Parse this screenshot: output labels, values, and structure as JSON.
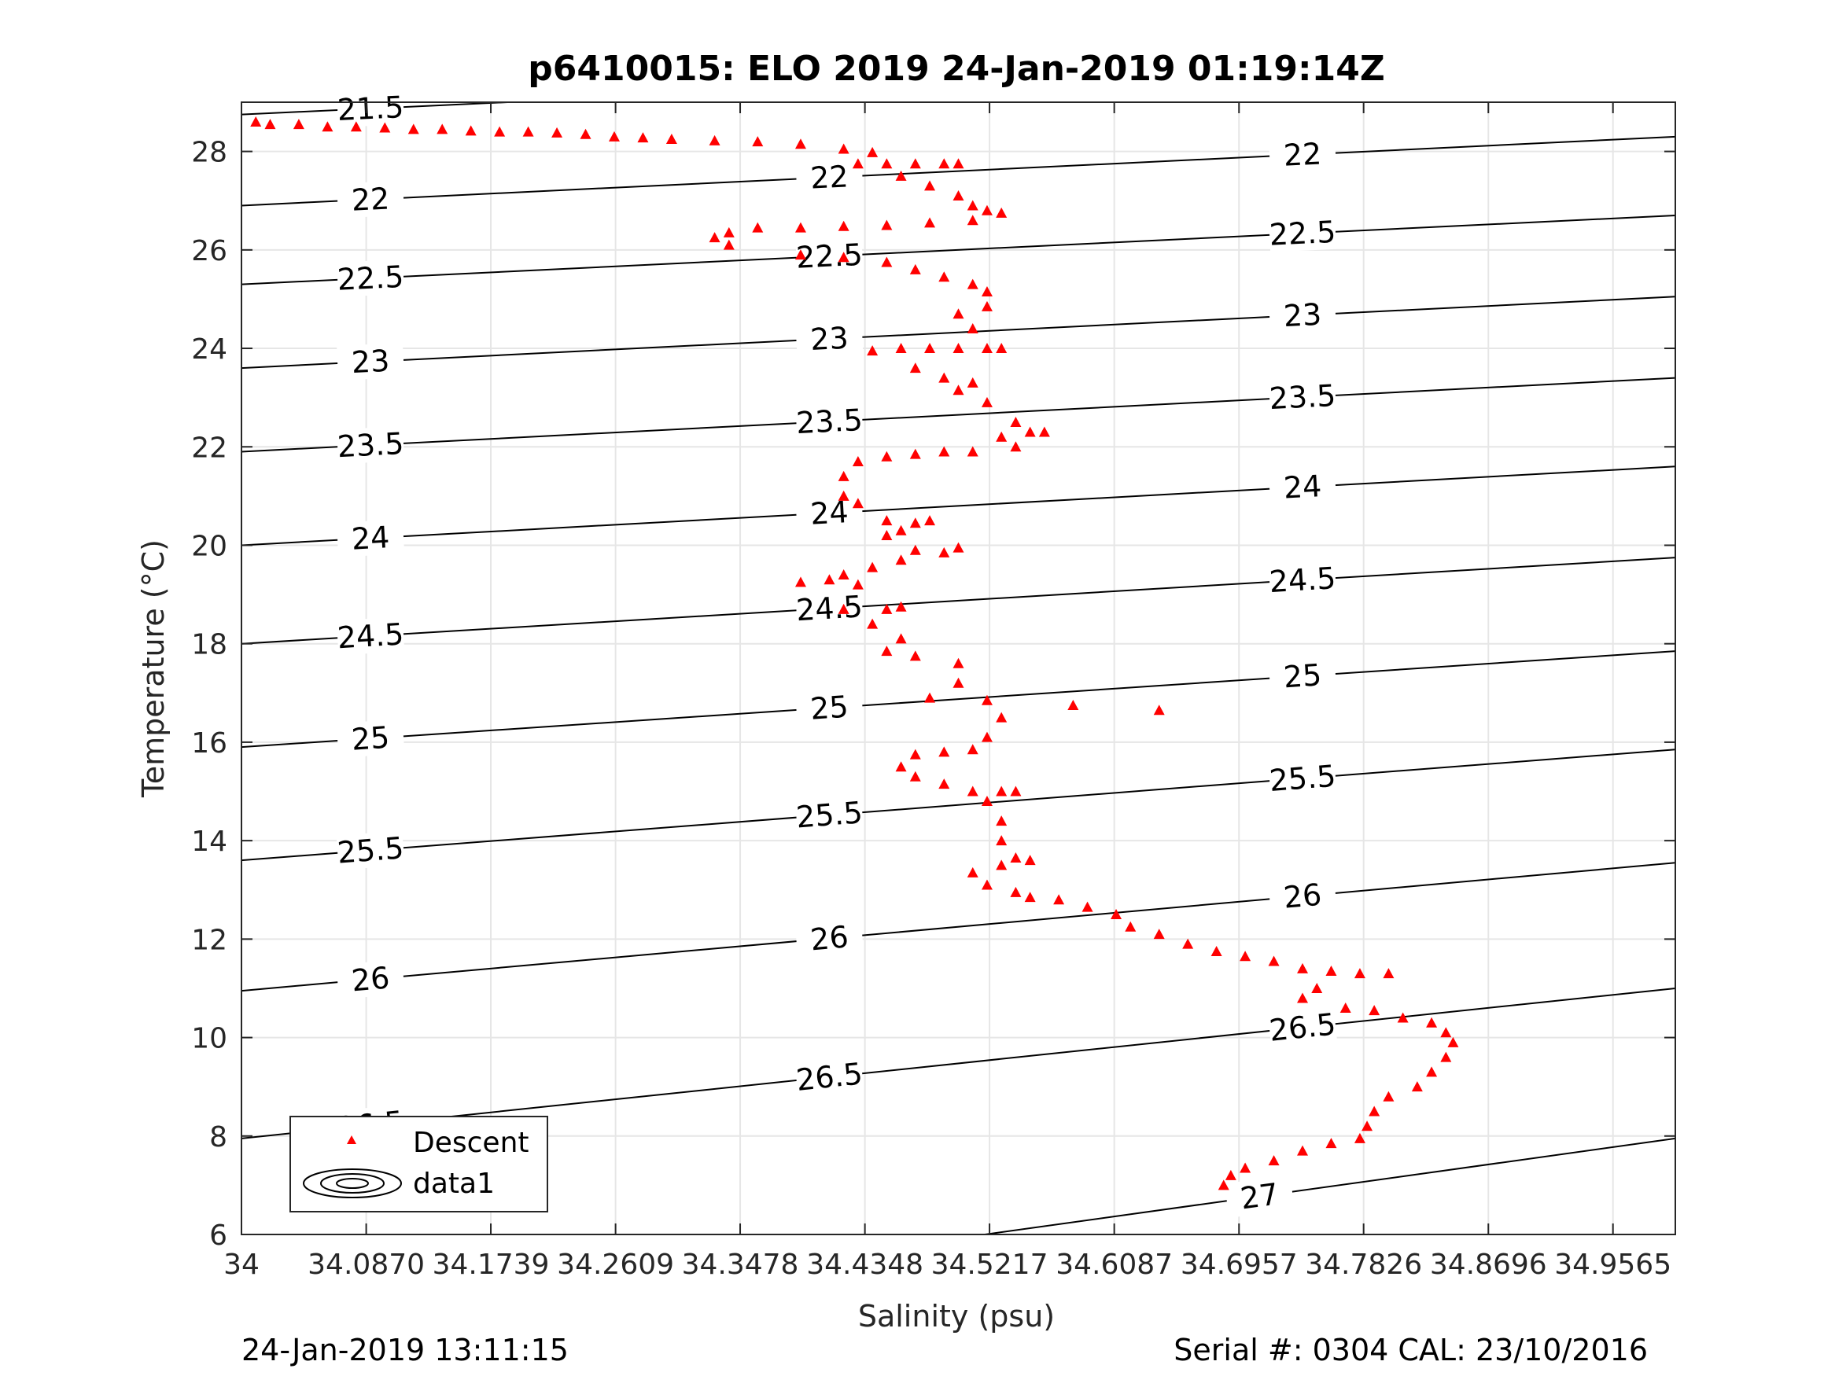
{
  "chart_data": {
    "type": "scatter",
    "title": "p6410015: ELO 2019 24-Jan-2019 01:19:14Z",
    "xlabel": "Salinity (psu)",
    "ylabel": "Temperature (°C)",
    "xlim": [
      34,
      35.0
    ],
    "ylim": [
      6,
      29
    ],
    "x_ticks": [
      34,
      34.087,
      34.1739,
      34.2609,
      34.3478,
      34.4348,
      34.5217,
      34.6087,
      34.6957,
      34.7826,
      34.8696,
      34.9565
    ],
    "x_tick_labels": [
      "34",
      "34.0870",
      "34.1739",
      "34.2609",
      "34.3478",
      "34.4348",
      "34.5217",
      "34.6087",
      "34.6957",
      "34.7826",
      "34.8696",
      "34.9565"
    ],
    "y_ticks": [
      6,
      8,
      10,
      12,
      14,
      16,
      18,
      20,
      22,
      24,
      26,
      28
    ],
    "y_tick_labels": [
      "6",
      "8",
      "10",
      "12",
      "14",
      "16",
      "18",
      "20",
      "22",
      "24",
      "26",
      "28"
    ],
    "grid": true,
    "legend": {
      "placement": "bottom-left",
      "entries": [
        "Descent",
        "data1"
      ]
    },
    "series": [
      {
        "name": "Descent",
        "marker": "triangle",
        "color": "#ff0000",
        "points": [
          [
            34.01,
            28.6
          ],
          [
            34.02,
            28.55
          ],
          [
            34.04,
            28.55
          ],
          [
            34.06,
            28.5
          ],
          [
            34.08,
            28.5
          ],
          [
            34.1,
            28.48
          ],
          [
            34.12,
            28.45
          ],
          [
            34.14,
            28.45
          ],
          [
            34.16,
            28.42
          ],
          [
            34.18,
            28.4
          ],
          [
            34.2,
            28.4
          ],
          [
            34.22,
            28.38
          ],
          [
            34.24,
            28.35
          ],
          [
            34.26,
            28.3
          ],
          [
            34.28,
            28.28
          ],
          [
            34.3,
            28.25
          ],
          [
            34.33,
            28.22
          ],
          [
            34.36,
            28.2
          ],
          [
            34.39,
            28.15
          ],
          [
            34.42,
            28.05
          ],
          [
            34.44,
            27.98
          ],
          [
            34.43,
            27.75
          ],
          [
            34.45,
            27.75
          ],
          [
            34.47,
            27.75
          ],
          [
            34.49,
            27.75
          ],
          [
            34.5,
            27.75
          ],
          [
            34.46,
            27.5
          ],
          [
            34.48,
            27.3
          ],
          [
            34.5,
            27.1
          ],
          [
            34.51,
            26.9
          ],
          [
            34.52,
            26.8
          ],
          [
            34.53,
            26.75
          ],
          [
            34.51,
            26.6
          ],
          [
            34.48,
            26.55
          ],
          [
            34.45,
            26.5
          ],
          [
            34.42,
            26.48
          ],
          [
            34.39,
            26.45
          ],
          [
            34.36,
            26.45
          ],
          [
            34.34,
            26.35
          ],
          [
            34.33,
            26.25
          ],
          [
            34.34,
            26.1
          ],
          [
            34.39,
            25.9
          ],
          [
            34.42,
            25.85
          ],
          [
            34.45,
            25.75
          ],
          [
            34.47,
            25.6
          ],
          [
            34.49,
            25.45
          ],
          [
            34.51,
            25.3
          ],
          [
            34.52,
            25.15
          ],
          [
            34.5,
            24.7
          ],
          [
            34.52,
            24.85
          ],
          [
            34.51,
            24.4
          ],
          [
            34.5,
            24.0
          ],
          [
            34.52,
            24.0
          ],
          [
            34.53,
            24.0
          ],
          [
            34.48,
            24.0
          ],
          [
            34.46,
            24.0
          ],
          [
            34.44,
            23.95
          ],
          [
            34.47,
            23.6
          ],
          [
            34.49,
            23.4
          ],
          [
            34.51,
            23.3
          ],
          [
            34.5,
            23.15
          ],
          [
            34.52,
            22.9
          ],
          [
            34.54,
            22.5
          ],
          [
            34.55,
            22.3
          ],
          [
            34.56,
            22.3
          ],
          [
            34.53,
            22.2
          ],
          [
            34.54,
            22.0
          ],
          [
            34.51,
            21.9
          ],
          [
            34.49,
            21.9
          ],
          [
            34.47,
            21.85
          ],
          [
            34.45,
            21.8
          ],
          [
            34.43,
            21.7
          ],
          [
            34.42,
            21.4
          ],
          [
            34.42,
            21.0
          ],
          [
            34.43,
            20.85
          ],
          [
            34.45,
            20.5
          ],
          [
            34.47,
            20.45
          ],
          [
            34.48,
            20.5
          ],
          [
            34.46,
            20.3
          ],
          [
            34.45,
            20.2
          ],
          [
            34.47,
            19.9
          ],
          [
            34.49,
            19.85
          ],
          [
            34.5,
            19.95
          ],
          [
            34.46,
            19.7
          ],
          [
            34.44,
            19.55
          ],
          [
            34.42,
            19.4
          ],
          [
            34.39,
            19.25
          ],
          [
            34.41,
            19.3
          ],
          [
            34.43,
            19.2
          ],
          [
            34.42,
            18.7
          ],
          [
            34.45,
            18.7
          ],
          [
            34.46,
            18.75
          ],
          [
            34.44,
            18.4
          ],
          [
            34.46,
            18.1
          ],
          [
            34.45,
            17.85
          ],
          [
            34.47,
            17.75
          ],
          [
            34.5,
            17.6
          ],
          [
            34.5,
            17.2
          ],
          [
            34.48,
            16.9
          ],
          [
            34.52,
            16.85
          ],
          [
            34.53,
            16.5
          ],
          [
            34.58,
            16.75
          ],
          [
            34.64,
            16.65
          ],
          [
            34.52,
            16.1
          ],
          [
            34.51,
            15.85
          ],
          [
            34.49,
            15.8
          ],
          [
            34.47,
            15.75
          ],
          [
            34.46,
            15.5
          ],
          [
            34.47,
            15.3
          ],
          [
            34.49,
            15.15
          ],
          [
            34.51,
            15.0
          ],
          [
            34.53,
            15.0
          ],
          [
            34.54,
            15.0
          ],
          [
            34.52,
            14.8
          ],
          [
            34.53,
            14.4
          ],
          [
            34.53,
            14.0
          ],
          [
            34.54,
            13.65
          ],
          [
            34.55,
            13.6
          ],
          [
            34.53,
            13.5
          ],
          [
            34.51,
            13.35
          ],
          [
            34.52,
            13.1
          ],
          [
            34.54,
            12.95
          ],
          [
            34.55,
            12.85
          ],
          [
            34.57,
            12.8
          ],
          [
            34.59,
            12.65
          ],
          [
            34.61,
            12.5
          ],
          [
            34.62,
            12.25
          ],
          [
            34.64,
            12.1
          ],
          [
            34.66,
            11.9
          ],
          [
            34.68,
            11.75
          ],
          [
            34.7,
            11.65
          ],
          [
            34.72,
            11.55
          ],
          [
            34.74,
            11.4
          ],
          [
            34.76,
            11.35
          ],
          [
            34.78,
            11.3
          ],
          [
            34.8,
            11.3
          ],
          [
            34.75,
            11.0
          ],
          [
            34.74,
            10.8
          ],
          [
            34.77,
            10.6
          ],
          [
            34.79,
            10.55
          ],
          [
            34.81,
            10.4
          ],
          [
            34.83,
            10.3
          ],
          [
            34.84,
            10.1
          ],
          [
            34.845,
            9.9
          ],
          [
            34.84,
            9.6
          ],
          [
            34.83,
            9.3
          ],
          [
            34.82,
            9.0
          ],
          [
            34.8,
            8.8
          ],
          [
            34.79,
            8.5
          ],
          [
            34.785,
            8.2
          ],
          [
            34.78,
            7.95
          ],
          [
            34.76,
            7.85
          ],
          [
            34.74,
            7.7
          ],
          [
            34.72,
            7.5
          ],
          [
            34.7,
            7.35
          ],
          [
            34.69,
            7.2
          ],
          [
            34.685,
            7.0
          ]
        ]
      }
    ],
    "contour_labels": [
      "21.5",
      "22",
      "22.5",
      "23",
      "23.5",
      "24",
      "24.5",
      "25",
      "25.5",
      "26",
      "26.5",
      "27"
    ],
    "contours": [
      {
        "level": "21.5",
        "y_left": 28.75,
        "y_right": 30.1
      },
      {
        "level": "22",
        "y_left": 26.9,
        "y_right": 28.3
      },
      {
        "level": "22.5",
        "y_left": 25.3,
        "y_right": 26.7
      },
      {
        "level": "23",
        "y_left": 23.6,
        "y_right": 25.05
      },
      {
        "level": "23.5",
        "y_left": 21.9,
        "y_right": 23.4
      },
      {
        "level": "24",
        "y_left": 20.0,
        "y_right": 21.6
      },
      {
        "level": "24.5",
        "y_left": 18.0,
        "y_right": 19.75
      },
      {
        "level": "25",
        "y_left": 15.9,
        "y_right": 17.85
      },
      {
        "level": "25.5",
        "y_left": 13.6,
        "y_right": 15.85
      },
      {
        "level": "26",
        "y_left": 10.95,
        "y_right": 13.55
      },
      {
        "level": "26.5",
        "y_left": 7.95,
        "y_right": 11.0
      },
      {
        "level": "27",
        "y_left": 3.9,
        "y_right": 7.95
      }
    ]
  },
  "footer": {
    "left": "24-Jan-2019 13:11:15",
    "right": "Serial #: 0304  CAL: 23/10/2016"
  }
}
